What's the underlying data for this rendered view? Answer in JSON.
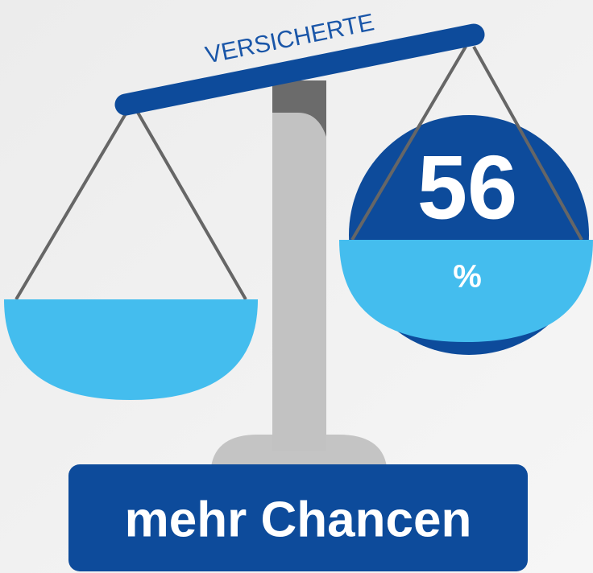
{
  "beam_label": "VERSICHERTE",
  "percentage": {
    "number": "56",
    "unit": "%"
  },
  "footer": {
    "label": "mehr Chancen"
  }
}
